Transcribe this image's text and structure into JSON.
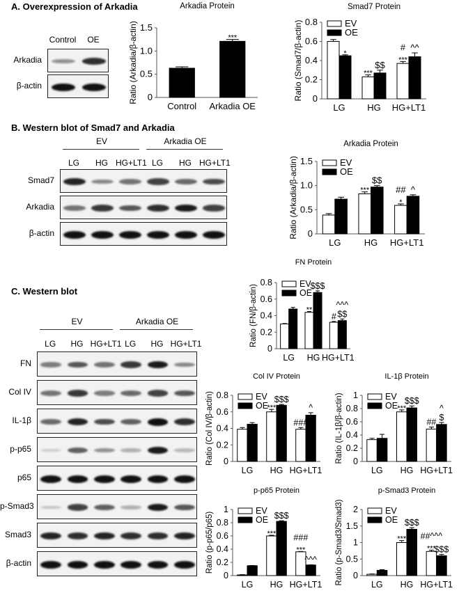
{
  "sections": {
    "A": {
      "title": "A. Overexpression of Arkadia"
    },
    "B": {
      "title": "B. Western blot of Smad7 and Arkadia"
    },
    "C": {
      "title": "C. Western blot"
    }
  },
  "blotA": {
    "lanes": [
      "Control",
      "OE"
    ],
    "rows": [
      {
        "label": "Arkadia",
        "intensities": [
          0.35,
          0.85
        ]
      },
      {
        "label": "β-actin",
        "intensities": [
          1.0,
          1.0
        ]
      }
    ]
  },
  "blotB": {
    "groups": [
      "EV",
      "Arkadia OE"
    ],
    "lanes": [
      "LG",
      "HG",
      "HG+LT1",
      "LG",
      "HG",
      "HG+LT1"
    ],
    "rows": [
      {
        "label": "Smad7",
        "intensities": [
          0.9,
          0.4,
          0.5,
          0.75,
          0.55,
          0.7
        ]
      },
      {
        "label": "Arkadia",
        "intensities": [
          0.5,
          0.8,
          0.65,
          0.85,
          0.95,
          0.75
        ]
      },
      {
        "label": "β-actin",
        "intensities": [
          1,
          1,
          1,
          1,
          1,
          1
        ]
      }
    ]
  },
  "blotC": {
    "groups": [
      "EV",
      "Arkadia OE"
    ],
    "lanes": [
      "LG",
      "HG",
      "HG+LT1",
      "LG",
      "HG",
      "HG+LT1"
    ],
    "rows": [
      {
        "label": "FN",
        "intensities": [
          0.45,
          0.65,
          0.5,
          0.8,
          0.95,
          0.4
        ]
      },
      {
        "label": "Col IV",
        "intensities": [
          0.5,
          0.8,
          0.45,
          0.55,
          0.75,
          0.65
        ]
      },
      {
        "label": "IL-1β",
        "intensities": [
          0.55,
          0.9,
          0.7,
          0.6,
          1.0,
          0.85
        ]
      },
      {
        "label": "p-p65",
        "intensities": [
          0.05,
          0.6,
          0.35,
          0.2,
          0.95,
          0.15
        ]
      },
      {
        "label": "p65",
        "intensities": [
          1,
          1,
          1,
          1,
          1,
          1
        ]
      },
      {
        "label": "p-Smad3",
        "intensities": [
          0.1,
          0.75,
          0.6,
          0.2,
          0.95,
          0.65
        ]
      },
      {
        "label": "Smad3",
        "intensities": [
          0.9,
          0.85,
          0.9,
          0.85,
          0.85,
          0.9
        ]
      },
      {
        "label": "β-actin",
        "intensities": [
          1,
          1,
          1,
          1,
          1,
          1
        ]
      }
    ]
  },
  "chart_data": [
    {
      "id": "arkadia_A",
      "type": "bar",
      "title": "Arkadia Protein",
      "xlabel": "",
      "ylabel": "Ratio (Arkadia/β-actin)",
      "ylim": [
        0,
        1.5
      ],
      "yticks": [
        "0",
        "0.5",
        "1.0",
        "1.5"
      ],
      "categories": [
        "Control",
        "Arkadia OE"
      ],
      "series": [
        {
          "name": "",
          "values": [
            0.63,
            1.21
          ],
          "errors": [
            0.03,
            0.04
          ],
          "annotations": [
            "",
            "***"
          ]
        }
      ],
      "legend": false
    },
    {
      "id": "smad7",
      "type": "bar",
      "title": "Smad7 Protein",
      "ylabel": "Ratio (Smad7/β-actin)",
      "ylim": [
        0,
        0.8
      ],
      "yticks": [
        "0",
        "0.2",
        "0.4",
        "0.6",
        "0.8"
      ],
      "categories": [
        "LG",
        "HG",
        "HG+LT1"
      ],
      "series": [
        {
          "name": "EV",
          "values": [
            0.6,
            0.23,
            0.37
          ],
          "errors": [
            0.02,
            0.02,
            0.02
          ],
          "annotations": [
            "",
            "***",
            "#\n***"
          ]
        },
        {
          "name": "OE",
          "values": [
            0.45,
            0.27,
            0.44
          ],
          "errors": [
            0.01,
            0.03,
            0.04
          ],
          "annotations": [
            "*",
            "$$",
            "^^"
          ]
        }
      ],
      "legend": true,
      "legend_position": "top-left"
    },
    {
      "id": "arkadia_B",
      "type": "bar",
      "title": "Arkadia Protein",
      "ylabel": "Ratio (Arkadia/β-actin)",
      "ylim": [
        0,
        1.5
      ],
      "yticks": [
        "0",
        "0.5",
        "1.0",
        "1.5"
      ],
      "categories": [
        "LG",
        "HG",
        "HG+LT1"
      ],
      "series": [
        {
          "name": "EV",
          "values": [
            0.39,
            0.83,
            0.59
          ],
          "errors": [
            0.03,
            0.04,
            0.03
          ],
          "annotations": [
            "",
            "***",
            "##\n*"
          ]
        },
        {
          "name": "OE",
          "values": [
            0.72,
            0.97,
            0.78
          ],
          "errors": [
            0.04,
            0.03,
            0.03
          ],
          "annotations": [
            "",
            "$$",
            "^"
          ]
        }
      ],
      "legend": true,
      "legend_position": "top-left"
    },
    {
      "id": "fn",
      "type": "bar",
      "title": "FN Protein",
      "ylabel": "Ratio (FN/β-actin)",
      "ylim": [
        0,
        0.8
      ],
      "yticks": [
        "0",
        "0.2",
        "0.4",
        "0.6",
        "0.8"
      ],
      "categories": [
        "LG",
        "HG",
        "HG+LT1"
      ],
      "series": [
        {
          "name": "EV",
          "values": [
            0.3,
            0.44,
            0.32
          ],
          "errors": [
            0.005,
            0.01,
            0.01
          ],
          "annotations": [
            "",
            "**",
            "#"
          ]
        },
        {
          "name": "OE",
          "values": [
            0.48,
            0.68,
            0.34
          ],
          "errors": [
            0.02,
            0.02,
            0.02
          ],
          "annotations": [
            "",
            "$$$",
            "^^^\n$$"
          ]
        }
      ],
      "legend": true,
      "legend_position": "top-left"
    },
    {
      "id": "col4",
      "type": "bar",
      "title": "Col IV Protein",
      "ylabel": "Ratio (Col IV/β-actin)",
      "ylim": [
        0,
        0.8
      ],
      "yticks": [
        "0",
        "0.2",
        "0.4",
        "0.6",
        "0.8"
      ],
      "categories": [
        "LG",
        "HG",
        "HG+LT1"
      ],
      "series": [
        {
          "name": "EV",
          "values": [
            0.39,
            0.6,
            0.39
          ],
          "errors": [
            0.02,
            0.03,
            0.02
          ],
          "annotations": [
            "",
            "***",
            "###"
          ]
        },
        {
          "name": "OE",
          "values": [
            0.45,
            0.68,
            0.56
          ],
          "errors": [
            0.02,
            0.01,
            0.03
          ],
          "annotations": [
            "",
            "$$$",
            "^"
          ]
        }
      ],
      "legend": true,
      "legend_position": "top-left"
    },
    {
      "id": "il1b",
      "type": "bar",
      "title": "IL-1β Protein",
      "ylabel": "Ratio (IL-1β/β-actin)",
      "ylim": [
        0,
        1
      ],
      "yticks": [
        "0",
        "0.2",
        "0.4",
        "0.6",
        "0.8",
        "1"
      ],
      "categories": [
        "LG",
        "HG",
        "HG+LT1"
      ],
      "series": [
        {
          "name": "EV",
          "values": [
            0.33,
            0.75,
            0.49
          ],
          "errors": [
            0.02,
            0.03,
            0.03
          ],
          "annotations": [
            "",
            "***",
            "##"
          ]
        },
        {
          "name": "OE",
          "values": [
            0.35,
            0.81,
            0.56
          ],
          "errors": [
            0.06,
            0.03,
            0.03
          ],
          "annotations": [
            "",
            "$$$",
            "^\n$"
          ]
        }
      ],
      "legend": true,
      "legend_position": "top-left"
    },
    {
      "id": "pp65",
      "type": "bar",
      "title": "p-p65 Protein",
      "ylabel": "Ratio (p-p65/p65)",
      "ylim": [
        0,
        1
      ],
      "yticks": [
        "0",
        "0.2",
        "0.4",
        "0.6",
        "0.8",
        "1"
      ],
      "categories": [
        "LG",
        "HG",
        "HG+LT1"
      ],
      "series": [
        {
          "name": "EV",
          "values": [
            0.01,
            0.6,
            0.36
          ],
          "errors": [
            0.005,
            0.01,
            0.005
          ],
          "annotations": [
            "",
            "***",
            "###\n***"
          ]
        },
        {
          "name": "OE",
          "values": [
            0.15,
            0.82,
            0.16
          ],
          "errors": [
            0.003,
            0.01,
            0.003
          ],
          "annotations": [
            "",
            "$$$",
            "^^^"
          ]
        }
      ],
      "legend": true,
      "legend_position": "top-left"
    },
    {
      "id": "psmad3",
      "type": "bar",
      "title": "p-Smad3 Protein",
      "ylabel": "Ratio (p-Smad3/Smad3)",
      "ylim": [
        0,
        2
      ],
      "yticks": [
        "0",
        "0.5",
        "1",
        "1.5",
        "2"
      ],
      "categories": [
        "LG",
        "HG",
        "HG+LT1"
      ],
      "series": [
        {
          "name": "EV",
          "values": [
            0.04,
            1.0,
            0.73
          ],
          "errors": [
            0.01,
            0.06,
            0.04
          ],
          "annotations": [
            "",
            "***",
            "##^^^\n***"
          ]
        },
        {
          "name": "OE",
          "values": [
            0.16,
            1.4,
            0.6
          ],
          "errors": [
            0.02,
            0.05,
            0.04
          ],
          "annotations": [
            "",
            "$$$",
            "$$$"
          ]
        }
      ],
      "legend": true,
      "legend_position": "top-left"
    }
  ]
}
